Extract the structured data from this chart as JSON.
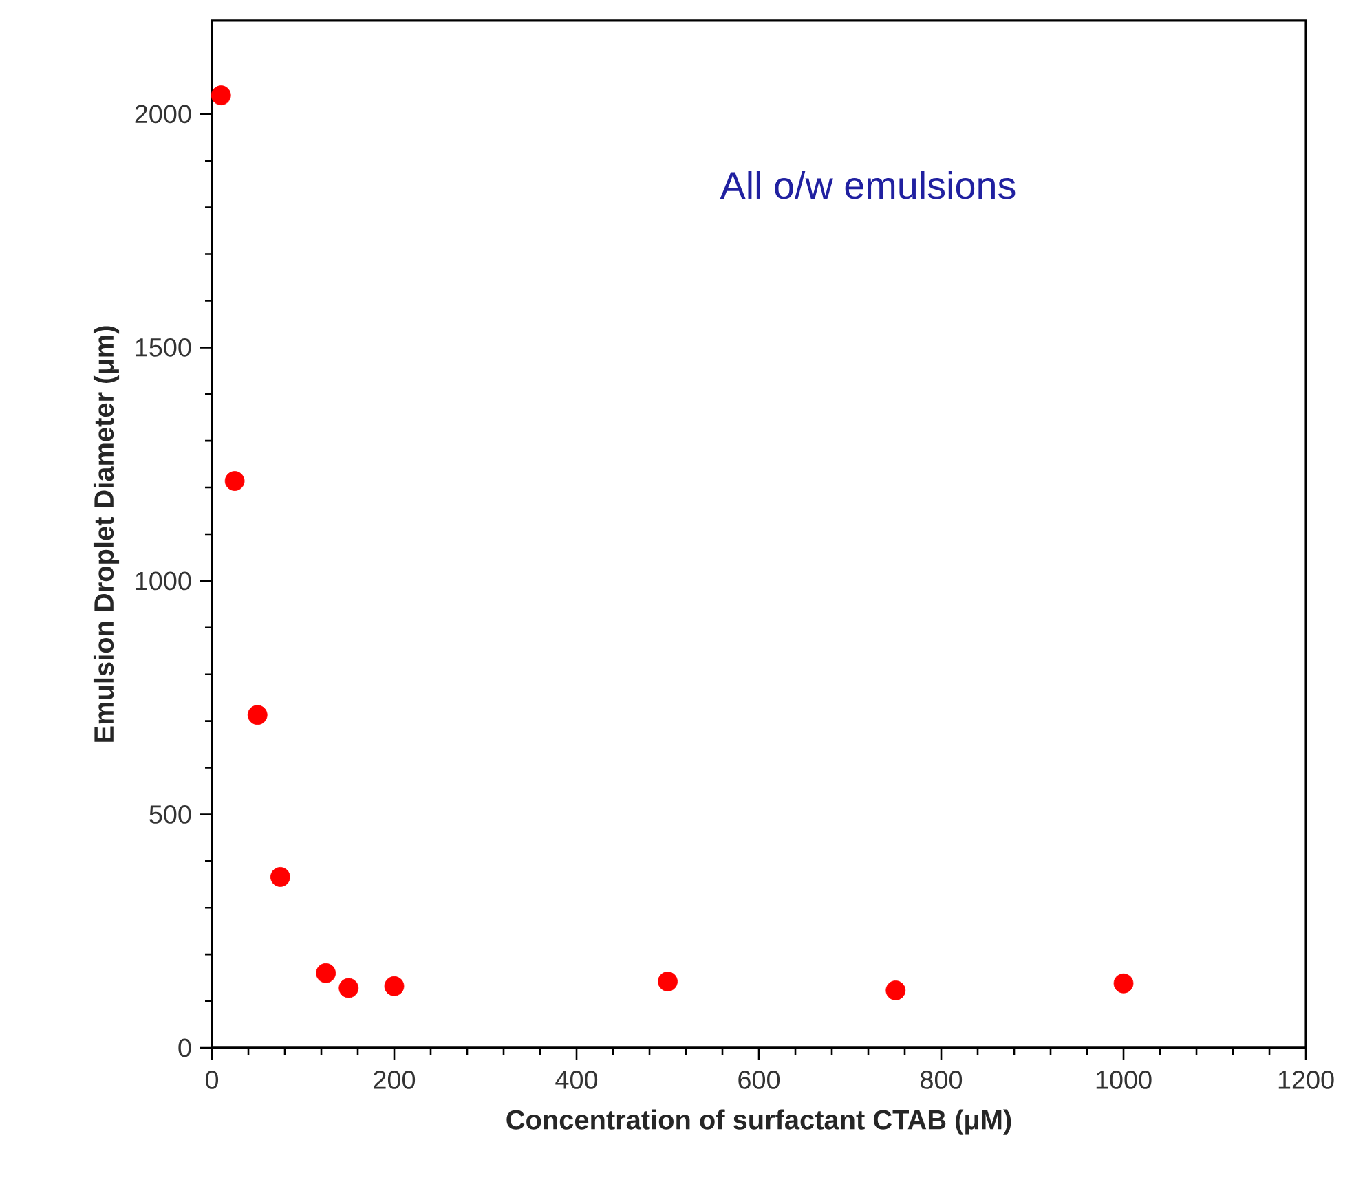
{
  "chart_data": {
    "type": "scatter",
    "xlabel": "Concentration of surfactant CTAB (μM)",
    "ylabel": "Emulsion Droplet Diameter (μm)",
    "annotations": [
      "All o/w emulsions"
    ],
    "x": [
      10,
      25,
      50,
      75,
      125,
      150,
      200,
      500,
      750,
      1000
    ],
    "series": [
      {
        "color": "#ff0000",
        "values": [
          2040,
          1214,
          713,
          366,
          160,
          128,
          132,
          142,
          123,
          138
        ]
      }
    ],
    "marker": "circle",
    "xlim": [
      0,
      1200
    ],
    "xticks": [
      0,
      200,
      400,
      600,
      800,
      1000,
      1200
    ],
    "ylim": [
      0,
      2200
    ],
    "yticks": [
      0,
      500,
      1000,
      1500,
      2000
    ],
    "grid": false
  }
}
